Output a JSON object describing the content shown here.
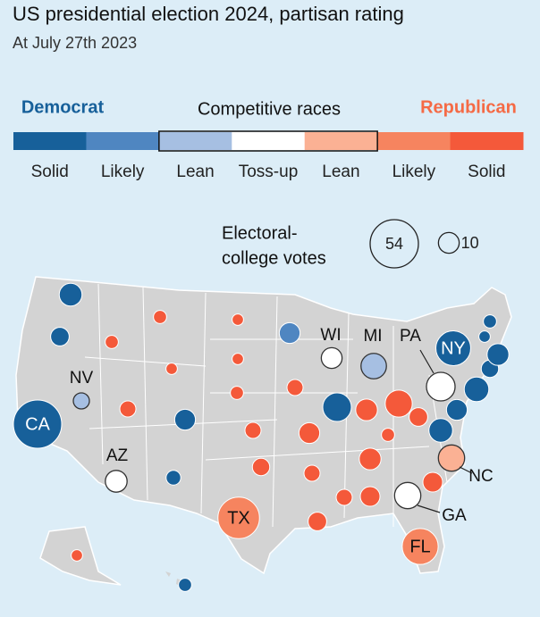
{
  "header": {
    "title": "US presidential election 2024, partisan rating",
    "subtitle": "At July 27th 2023"
  },
  "legend": {
    "groups": [
      "Democrat",
      "Competitive races",
      "Republican"
    ],
    "ratings": [
      {
        "label": "Solid",
        "color": "#17609a"
      },
      {
        "label": "Likely",
        "color": "#4f86c1"
      },
      {
        "label": "Lean",
        "color": "#a6bfe2"
      },
      {
        "label": "Toss-up",
        "color": "#ffffff"
      },
      {
        "label": "Lean",
        "color": "#fbb194"
      },
      {
        "label": "Likely",
        "color": "#f6845f"
      },
      {
        "label": "Solid",
        "color": "#f4593a"
      }
    ],
    "size_title": [
      "Electoral-",
      "college votes"
    ],
    "size_examples": [
      54,
      10
    ]
  },
  "states": [
    {
      "label": "CA",
      "votes": 54,
      "rating": 0
    },
    {
      "label": "TX",
      "votes": 40,
      "rating": 5
    },
    {
      "label": "FL",
      "votes": 30,
      "rating": 5
    },
    {
      "label": "NY",
      "votes": 28,
      "rating": 0
    },
    {
      "label": "PA",
      "votes": 19,
      "rating": 3
    },
    {
      "label": "GA",
      "votes": 16,
      "rating": 3
    },
    {
      "label": "NC",
      "votes": 16,
      "rating": 4
    },
    {
      "label": "MI",
      "votes": 15,
      "rating": 2
    },
    {
      "label": "AZ",
      "votes": 11,
      "rating": 3
    },
    {
      "label": "WI",
      "votes": 10,
      "rating": 3
    },
    {
      "label": "NV",
      "votes": 6,
      "rating": 2
    },
    {
      "votes": 12,
      "rating": 0
    },
    {
      "votes": 8,
      "rating": 0
    },
    {
      "votes": 4,
      "rating": 6
    },
    {
      "votes": 4,
      "rating": 6
    },
    {
      "votes": 3,
      "rating": 6
    },
    {
      "votes": 6,
      "rating": 6
    },
    {
      "votes": 10,
      "rating": 0
    },
    {
      "votes": 5,
      "rating": 0
    },
    {
      "votes": 3,
      "rating": 6
    },
    {
      "votes": 3,
      "rating": 6
    },
    {
      "votes": 4,
      "rating": 6
    },
    {
      "votes": 6,
      "rating": 6
    },
    {
      "votes": 7,
      "rating": 6
    },
    {
      "votes": 10,
      "rating": 1
    },
    {
      "votes": 6,
      "rating": 6
    },
    {
      "votes": 10,
      "rating": 6
    },
    {
      "votes": 6,
      "rating": 6
    },
    {
      "votes": 8,
      "rating": 6
    },
    {
      "votes": 19,
      "rating": 0
    },
    {
      "votes": 11,
      "rating": 6
    },
    {
      "votes": 17,
      "rating": 6
    },
    {
      "votes": 8,
      "rating": 6
    },
    {
      "votes": 11,
      "rating": 6
    },
    {
      "votes": 9,
      "rating": 6
    },
    {
      "votes": 6,
      "rating": 6
    },
    {
      "votes": 4,
      "rating": 6
    },
    {
      "votes": 9,
      "rating": 6
    },
    {
      "votes": 13,
      "rating": 0
    },
    {
      "votes": 10,
      "rating": 0
    },
    {
      "votes": 14,
      "rating": 0
    },
    {
      "votes": 7,
      "rating": 0
    },
    {
      "votes": 11,
      "rating": 0
    },
    {
      "votes": 3,
      "rating": 0
    },
    {
      "votes": 4,
      "rating": 0
    },
    {
      "votes": 3,
      "rating": 6
    },
    {
      "votes": 4,
      "rating": 0
    }
  ]
}
